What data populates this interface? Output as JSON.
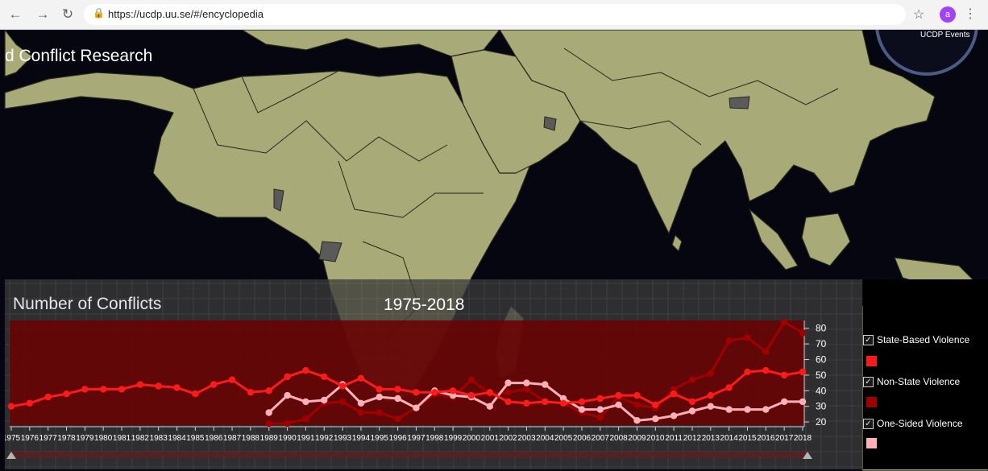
{
  "browser": {
    "url": "https://ucdp.uu.se/#/encyclopedia",
    "profile_initial": "a",
    "back_icon": "arrow-left",
    "forward_icon": "arrow-right",
    "reload_icon": "reload",
    "lock_icon": "lock",
    "star_icon": "star",
    "menu_icon": "kebab-menu"
  },
  "site": {
    "title_fragment": "d Conflict Research",
    "events_label": "UCDP Events"
  },
  "chart_data": {
    "type": "line",
    "title": "Number of Conflicts",
    "subtitle": "1975-2018",
    "xlabel": "",
    "ylabel": "",
    "ylim": [
      18,
      85
    ],
    "y_ticks": [
      20,
      30,
      40,
      50,
      60,
      70,
      80
    ],
    "grid": true,
    "legend_placement": "right",
    "x": [
      1975,
      1976,
      1977,
      1978,
      1979,
      1980,
      1981,
      1982,
      1983,
      1984,
      1985,
      1986,
      1987,
      1988,
      1989,
      1990,
      1991,
      1992,
      1993,
      1994,
      1995,
      1996,
      1997,
      1998,
      1999,
      2000,
      2001,
      2002,
      2003,
      2004,
      2005,
      2006,
      2007,
      2008,
      2009,
      2010,
      2011,
      2012,
      2013,
      2014,
      2015,
      2016,
      2017,
      2018
    ],
    "series": [
      {
        "name": "State-Based Violence",
        "color": "#ff1a1a",
        "values": [
          30,
          32,
          36,
          38,
          41,
          41,
          41,
          44,
          43,
          42,
          38,
          44,
          47,
          39,
          40,
          49,
          53,
          49,
          43,
          48,
          41,
          41,
          39,
          39,
          40,
          37,
          39,
          33,
          32,
          33,
          32,
          33,
          35,
          37,
          37,
          31,
          38,
          33,
          37,
          42,
          52,
          53,
          50,
          52
        ]
      },
      {
        "name": "Non-State Violence",
        "color": "#a00000",
        "values": [
          null,
          null,
          null,
          null,
          null,
          null,
          null,
          null,
          null,
          null,
          null,
          null,
          null,
          null,
          19,
          19,
          22,
          32,
          33,
          26,
          26,
          22,
          29,
          38,
          36,
          47,
          38,
          39,
          41,
          33,
          32,
          26,
          23,
          36,
          31,
          29,
          41,
          47,
          51,
          72,
          74,
          65,
          84,
          77
        ]
      },
      {
        "name": "One-Sided Violence",
        "color": "#ffb0b8",
        "values": [
          null,
          null,
          null,
          null,
          null,
          null,
          null,
          null,
          null,
          null,
          null,
          null,
          null,
          null,
          26,
          37,
          33,
          34,
          44,
          32,
          36,
          35,
          29,
          40,
          37,
          36,
          30,
          45,
          45,
          44,
          35,
          28,
          28,
          31,
          21,
          22,
          24,
          27,
          30,
          28,
          28,
          28,
          33,
          33
        ]
      }
    ]
  }
}
